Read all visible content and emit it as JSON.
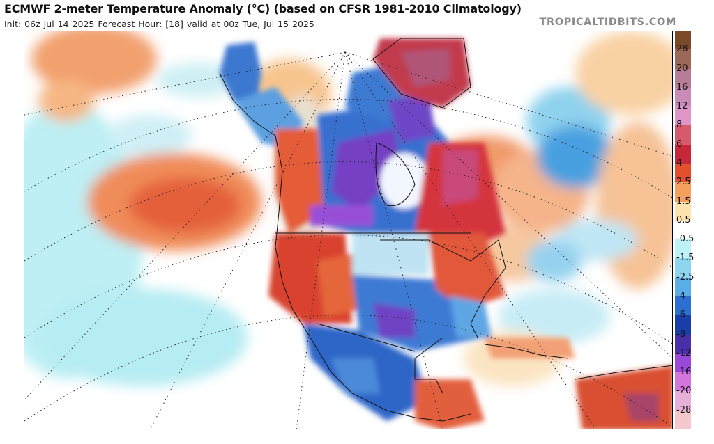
{
  "header": {
    "title": "ECMWF 2-meter Temperature Anomaly (°C) (based on CFSR 1981-2010 Climatology)",
    "subtitle": "Init: 06z Jul 14 2025   Forecast Hour: [18]   valid at 00z Tue, Jul 15 2025",
    "brand": "TROPICALTIDBITS.COM"
  },
  "map": {
    "region": "North America",
    "field": "2-meter temperature anomaly"
  },
  "legend": {
    "labels": [
      "28",
      "20",
      "16",
      "12",
      "8",
      "6",
      "4",
      "2.5",
      "1.5",
      "0.5",
      "-0.5",
      "-1.5",
      "-2.5",
      "-4",
      "-6",
      "-8",
      "-12",
      "-16",
      "-20",
      "-28"
    ],
    "colors": [
      "#7a4a2a",
      "#9c6858",
      "#b57d96",
      "#c98cb6",
      "#de96c8",
      "#d65a6c",
      "#c6283a",
      "#e2502e",
      "#f6a05e",
      "#fde3b0",
      "#ffffff",
      "#bff2f4",
      "#8fd5ee",
      "#5aaee8",
      "#2c6fd2",
      "#1a3ea8",
      "#4a2fa8",
      "#9a48d8",
      "#d276dc",
      "#e6b0d8",
      "#f4c8cc"
    ]
  }
}
